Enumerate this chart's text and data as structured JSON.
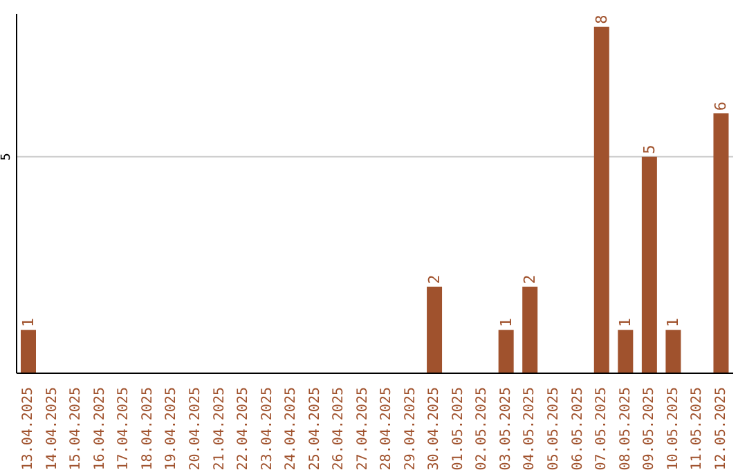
{
  "chart_data": {
    "type": "bar",
    "categories": [
      "13.04.2025",
      "14.04.2025",
      "15.04.2025",
      "16.04.2025",
      "17.04.2025",
      "18.04.2025",
      "19.04.2025",
      "20.04.2025",
      "21.04.2025",
      "22.04.2025",
      "23.04.2025",
      "24.04.2025",
      "25.04.2025",
      "26.04.2025",
      "27.04.2025",
      "28.04.2025",
      "29.04.2025",
      "30.04.2025",
      "01.05.2025",
      "02.05.2025",
      "03.05.2025",
      "04.05.2025",
      "05.05.2025",
      "06.05.2025",
      "07.05.2025",
      "08.05.2025",
      "09.05.2025",
      "10.05.2025",
      "11.05.2025",
      "12.05.2025"
    ],
    "values": [
      1,
      0,
      0,
      0,
      0,
      0,
      0,
      0,
      0,
      0,
      0,
      0,
      0,
      0,
      0,
      0,
      0,
      2,
      0,
      0,
      1,
      2,
      0,
      0,
      8,
      1,
      5,
      1,
      0,
      6
    ],
    "value_labels": [
      "1",
      null,
      null,
      null,
      null,
      null,
      null,
      null,
      null,
      null,
      null,
      null,
      null,
      null,
      null,
      null,
      null,
      "2",
      null,
      null,
      "1",
      "2",
      null,
      null,
      "8",
      "1",
      "5",
      "1",
      null,
      "6"
    ],
    "color": "#a0522d",
    "ylim": [
      0,
      8.3
    ],
    "yticks": [
      5
    ],
    "grid": "y"
  }
}
